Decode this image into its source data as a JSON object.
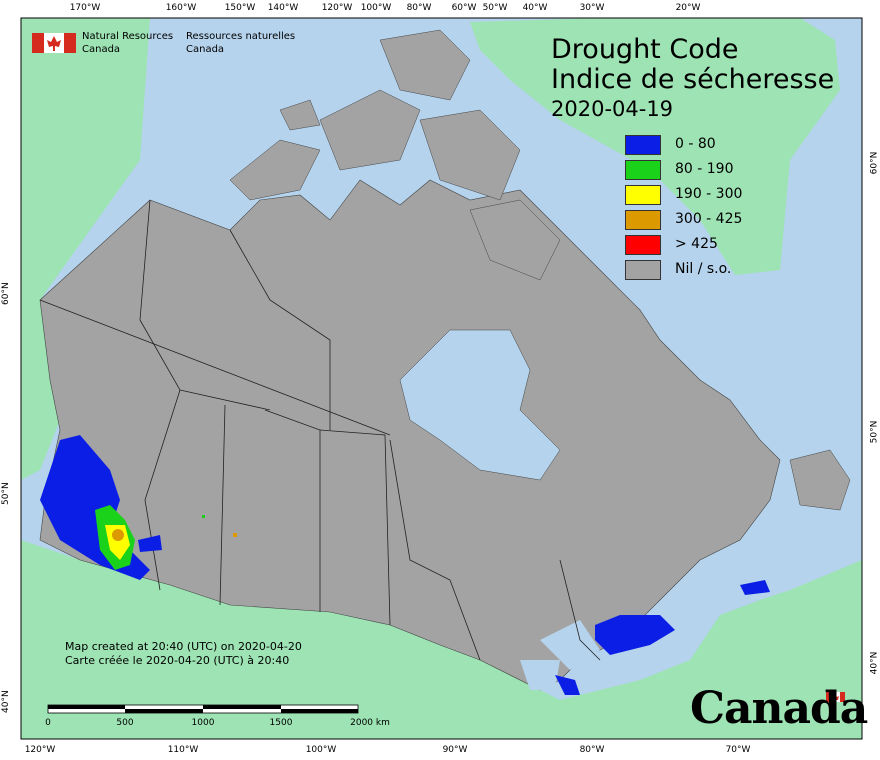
{
  "title": {
    "line1": "Drought Code",
    "line2": "Indice de sécheresse",
    "date": "2020-04-19"
  },
  "legend": [
    {
      "label": "0 - 80",
      "color": "#0a1ee6"
    },
    {
      "label": "80 - 190",
      "color": "#19d219"
    },
    {
      "label": "190 - 300",
      "color": "#ffff00"
    },
    {
      "label": "300 - 425",
      "color": "#dc9a00"
    },
    {
      "label": "> 425",
      "color": "#ff0000"
    },
    {
      "label": "Nil / s.o.",
      "color": "#a3a3a3"
    }
  ],
  "agency": {
    "en_line1": "Natural Resources",
    "en_line2": "Canada",
    "fr_line1": "Ressources naturelles",
    "fr_line2": "Canada"
  },
  "credit": {
    "en": "Map created at 20:40 (UTC) on 2020-04-20",
    "fr": "Carte créée le 2020-04-20 (UTC) à 20:40"
  },
  "scale_bar": {
    "labels": [
      "0",
      "500",
      "1000",
      "1500",
      "2000 km"
    ]
  },
  "wordmark": "Canada",
  "graticule": {
    "top": [
      "170°W",
      "160°W",
      "150°W",
      "140°W",
      "120°W",
      "100°W",
      "80°W",
      "60°W",
      "50°W",
      "40°W",
      "30°W",
      "20°W"
    ],
    "bottom": [
      "120°W",
      "110°W",
      "100°W",
      "90°W",
      "80°W",
      "70°W"
    ],
    "left": [
      "60°N",
      "50°N",
      "40°N"
    ],
    "right": [
      "60°N",
      "50°N",
      "40°N"
    ]
  },
  "colors": {
    "ocean": "#b5d3ec",
    "land_other": "#9de3b3",
    "canada": "#a3a3a3"
  }
}
